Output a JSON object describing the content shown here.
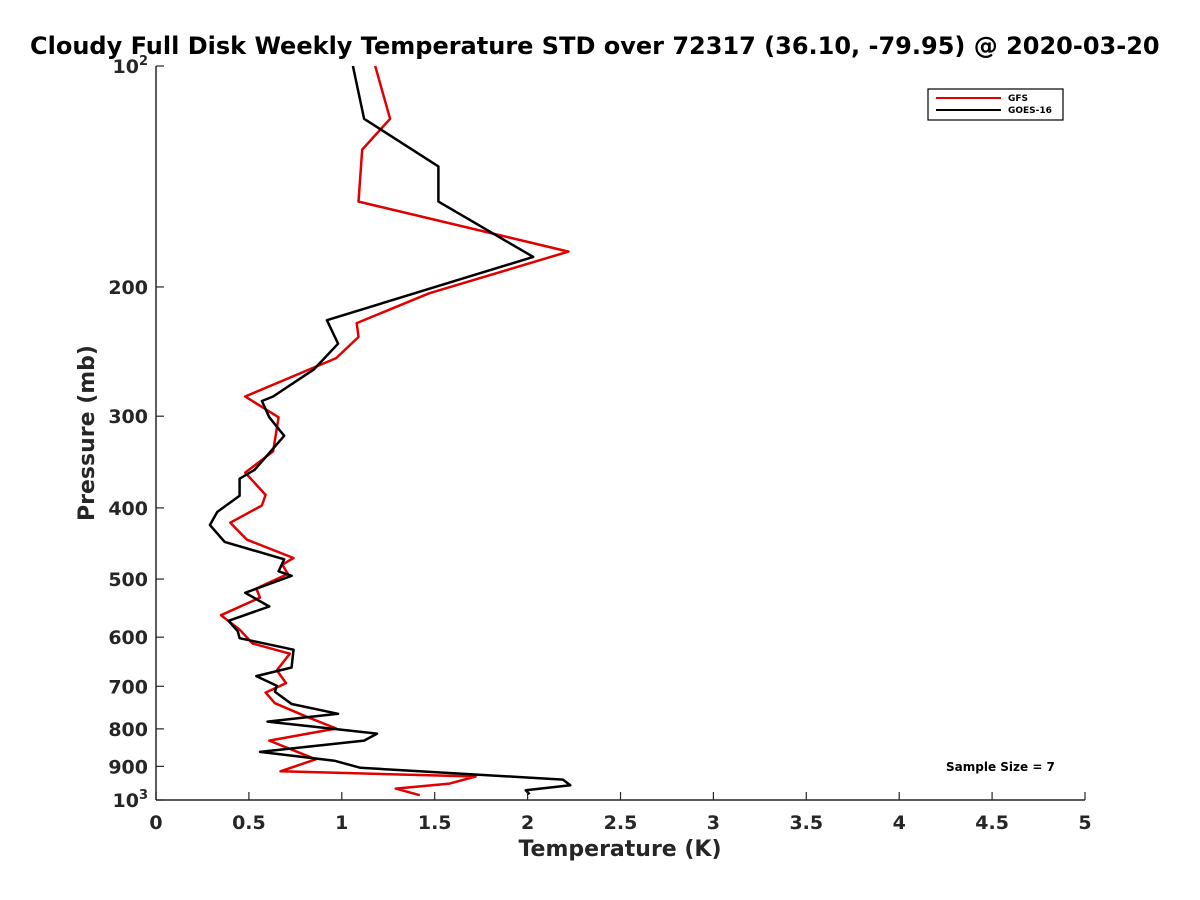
{
  "chart_data": {
    "type": "line",
    "title": "Cloudy Full Disk Weekly Temperature STD over 72317 (36.10, -79.95) @ 2020-03-20",
    "xlabel": "Temperature (K)",
    "ylabel": "Pressure (mb)",
    "xlim": [
      0,
      5
    ],
    "ylim": [
      100,
      1000
    ],
    "y_scale": "log",
    "y_reversed": true,
    "grid": false,
    "legend_position": "top-right",
    "x_ticks": [
      {
        "value": 0,
        "label": "0"
      },
      {
        "value": 0.5,
        "label": "0.5"
      },
      {
        "value": 1,
        "label": "1"
      },
      {
        "value": 1.5,
        "label": "1.5"
      },
      {
        "value": 2,
        "label": "2"
      },
      {
        "value": 2.5,
        "label": "2.5"
      },
      {
        "value": 3,
        "label": "3"
      },
      {
        "value": 3.5,
        "label": "3.5"
      },
      {
        "value": 4,
        "label": "4"
      },
      {
        "value": 4.5,
        "label": "4.5"
      },
      {
        "value": 5,
        "label": "5"
      }
    ],
    "y_ticks": [
      {
        "value": 100,
        "base": "10",
        "exp": "2"
      },
      {
        "value": 200,
        "label": "200"
      },
      {
        "value": 300,
        "label": "300"
      },
      {
        "value": 400,
        "label": "400"
      },
      {
        "value": 500,
        "label": "500"
      },
      {
        "value": 600,
        "label": "600"
      },
      {
        "value": 700,
        "label": "700"
      },
      {
        "value": 800,
        "label": "800"
      },
      {
        "value": 900,
        "label": "900"
      },
      {
        "value": 1000,
        "base": "10",
        "exp": "3"
      }
    ],
    "series": [
      {
        "name": "GFS",
        "color": "#e00000",
        "points": [
          [
            1.18,
            100
          ],
          [
            1.26,
            118
          ],
          [
            1.11,
            130
          ],
          [
            1.09,
            153
          ],
          [
            2.22,
            179
          ],
          [
            1.47,
            204
          ],
          [
            1.08,
            224
          ],
          [
            1.09,
            234
          ],
          [
            0.97,
            250
          ],
          [
            0.48,
            282
          ],
          [
            0.66,
            301
          ],
          [
            0.63,
            335
          ],
          [
            0.48,
            358
          ],
          [
            0.59,
            384
          ],
          [
            0.57,
            397
          ],
          [
            0.4,
            419
          ],
          [
            0.49,
            442
          ],
          [
            0.74,
            468
          ],
          [
            0.68,
            478
          ],
          [
            0.71,
            492
          ],
          [
            0.54,
            515
          ],
          [
            0.56,
            530
          ],
          [
            0.35,
            560
          ],
          [
            0.45,
            586
          ],
          [
            0.52,
            612
          ],
          [
            0.72,
            632
          ],
          [
            0.65,
            666
          ],
          [
            0.7,
            693
          ],
          [
            0.59,
            714
          ],
          [
            0.64,
            738
          ],
          [
            0.81,
            770
          ],
          [
            0.97,
            799
          ],
          [
            0.61,
            830
          ],
          [
            0.86,
            880
          ],
          [
            0.67,
            914
          ],
          [
            1.72,
            929
          ],
          [
            1.58,
            950
          ],
          [
            1.29,
            965
          ],
          [
            1.42,
            985
          ]
        ]
      },
      {
        "name": "GOES-16",
        "color": "#000000",
        "points": [
          [
            1.06,
            100
          ],
          [
            1.12,
            118
          ],
          [
            1.52,
            137
          ],
          [
            1.52,
            153
          ],
          [
            2.03,
            182
          ],
          [
            0.92,
            222
          ],
          [
            0.98,
            239
          ],
          [
            0.85,
            259
          ],
          [
            0.63,
            282
          ],
          [
            0.57,
            286
          ],
          [
            0.61,
            301
          ],
          [
            0.69,
            319
          ],
          [
            0.53,
            355
          ],
          [
            0.45,
            365
          ],
          [
            0.45,
            385
          ],
          [
            0.33,
            405
          ],
          [
            0.29,
            422
          ],
          [
            0.37,
            445
          ],
          [
            0.69,
            470
          ],
          [
            0.66,
            488
          ],
          [
            0.73,
            495
          ],
          [
            0.48,
            522
          ],
          [
            0.61,
            545
          ],
          [
            0.39,
            570
          ],
          [
            0.44,
            589
          ],
          [
            0.45,
            602
          ],
          [
            0.74,
            624
          ],
          [
            0.73,
            660
          ],
          [
            0.54,
            678
          ],
          [
            0.65,
            699
          ],
          [
            0.64,
            712
          ],
          [
            0.73,
            740
          ],
          [
            0.98,
            763
          ],
          [
            0.6,
            782
          ],
          [
            1.19,
            812
          ],
          [
            1.12,
            830
          ],
          [
            0.56,
            860
          ],
          [
            0.96,
            884
          ],
          [
            1.1,
            904
          ],
          [
            2.19,
            938
          ],
          [
            2.23,
            955
          ],
          [
            1.99,
            970
          ],
          [
            2.01,
            982
          ]
        ]
      }
    ],
    "annotations": [
      {
        "text": "Sample Size = 7"
      }
    ]
  }
}
